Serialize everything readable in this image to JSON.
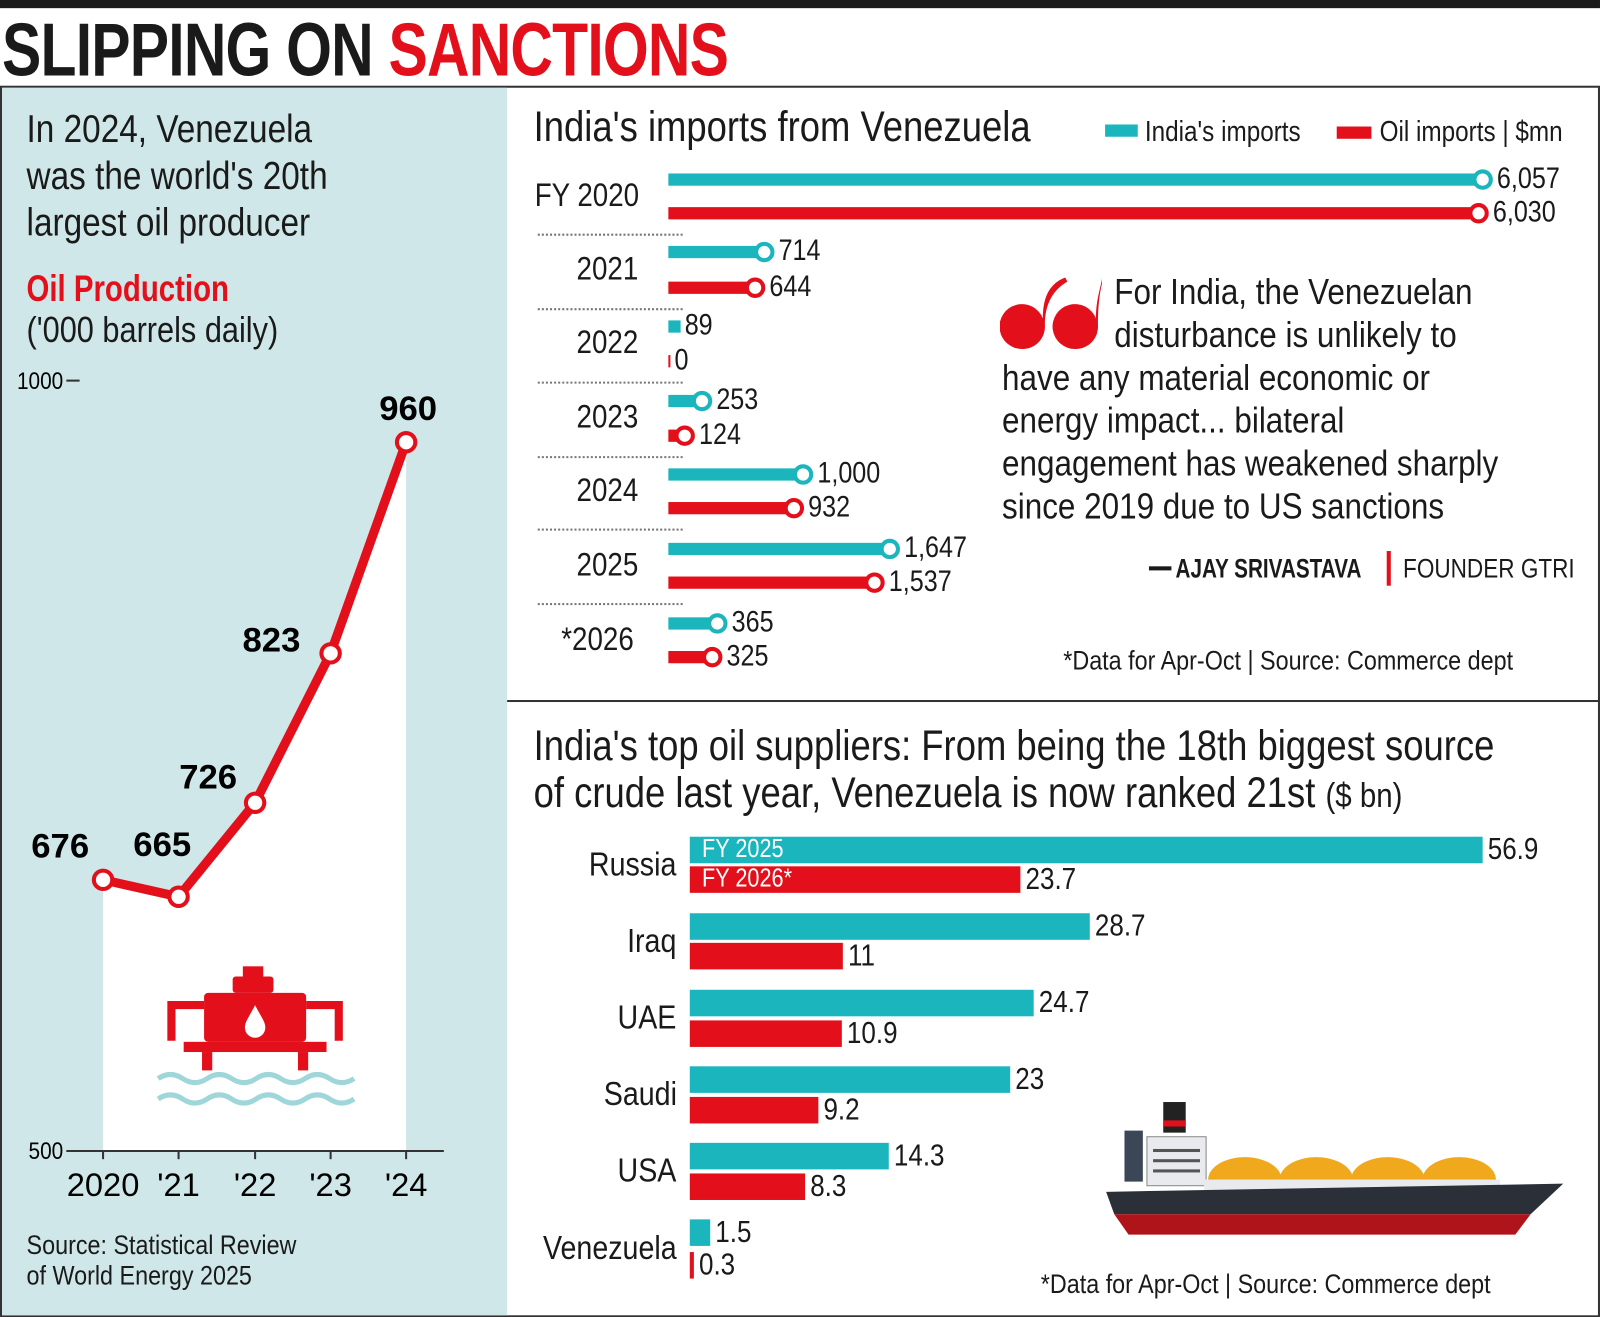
{
  "title": {
    "part1": "SLIPPING ON",
    "part2": "SANCTIONS"
  },
  "colors": {
    "teal": "#1ab5bd",
    "red": "#e3101b",
    "panel_bg": "#cfe7e8"
  },
  "left_panel": {
    "headline_lines": [
      "In 2024, Venezuela",
      "was the world's 20th",
      "largest oil producer"
    ],
    "subtitle": "Oil Production",
    "unit": "('000 barrels daily)",
    "source_lines": [
      "Source: Statistical Review",
      "of World Energy 2025"
    ],
    "icon": "oil-rig-icon"
  },
  "quote": {
    "lines": [
      "For India, the Venezuelan",
      "disturbance is unlikely to",
      "have any material economic or",
      "energy impact... bilateral",
      "engagement has weakened sharply",
      "since 2019 due to US sanctions"
    ],
    "author": "AJAY SRIVASTAVA",
    "role": "FOUNDER GTRI"
  },
  "bottom_icon": "tanker-ship-icon",
  "chart_data": [
    {
      "type": "line",
      "title": "Oil Production",
      "ylabel": "('000 barrels daily)",
      "categories": [
        "2020",
        "'21",
        "'22",
        "'23",
        "'24"
      ],
      "values": [
        676,
        665,
        726,
        823,
        960
      ],
      "labels": [
        "676",
        "665",
        "726",
        "823",
        "960"
      ],
      "ylim": [
        500,
        1000
      ],
      "yticks": [
        "500",
        "1000"
      ],
      "color": "#e3101b"
    },
    {
      "type": "bar",
      "orientation": "horizontal",
      "title": "India's imports from Venezuela",
      "unit": "$mn",
      "legend_position": "top-right",
      "legend": [
        "India's imports",
        "Oil imports | $mn"
      ],
      "categories": [
        "FY 2020",
        "2021",
        "2022",
        "2023",
        "2024",
        "2025",
        "*2026"
      ],
      "series": [
        {
          "name": "India's imports",
          "color": "#1ab5bd",
          "values": [
            6057,
            714,
            89,
            253,
            1000,
            1647,
            365
          ],
          "labels": [
            "6,057",
            "714",
            "89",
            "253",
            "1,000",
            "1,647",
            "365"
          ]
        },
        {
          "name": "Oil imports",
          "color": "#e3101b",
          "values": [
            6030,
            644,
            0,
            124,
            932,
            1537,
            325
          ],
          "labels": [
            "6,030",
            "644",
            "0",
            "124",
            "932",
            "1,537",
            "325"
          ]
        }
      ],
      "footnote": "*Data for Apr-Oct | Source: Commerce dept"
    },
    {
      "type": "bar",
      "orientation": "horizontal",
      "title_lines": [
        "India's top oil suppliers: From being the 18th biggest source",
        "of crude last year, Venezuela is now ranked 21st"
      ],
      "unit": "($ bn)",
      "categories": [
        "Russia",
        "Iraq",
        "UAE",
        "Saudi",
        "USA",
        "Venezuela"
      ],
      "series": [
        {
          "name": "FY 2025",
          "color": "#1ab5bd",
          "values": [
            56.9,
            28.7,
            24.7,
            23,
            14.3,
            1.5
          ],
          "labels": [
            "56.9",
            "28.7",
            "24.7",
            "23",
            "14.3",
            "1.5"
          ]
        },
        {
          "name": "FY 2026*",
          "color": "#e3101b",
          "values": [
            23.7,
            11,
            10.9,
            9.2,
            8.3,
            0.3
          ],
          "labels": [
            "23.7",
            "11",
            "10.9",
            "9.2",
            "8.3",
            "0.3"
          ]
        }
      ],
      "footnote": "*Data for Apr-Oct | Source: Commerce dept"
    }
  ]
}
